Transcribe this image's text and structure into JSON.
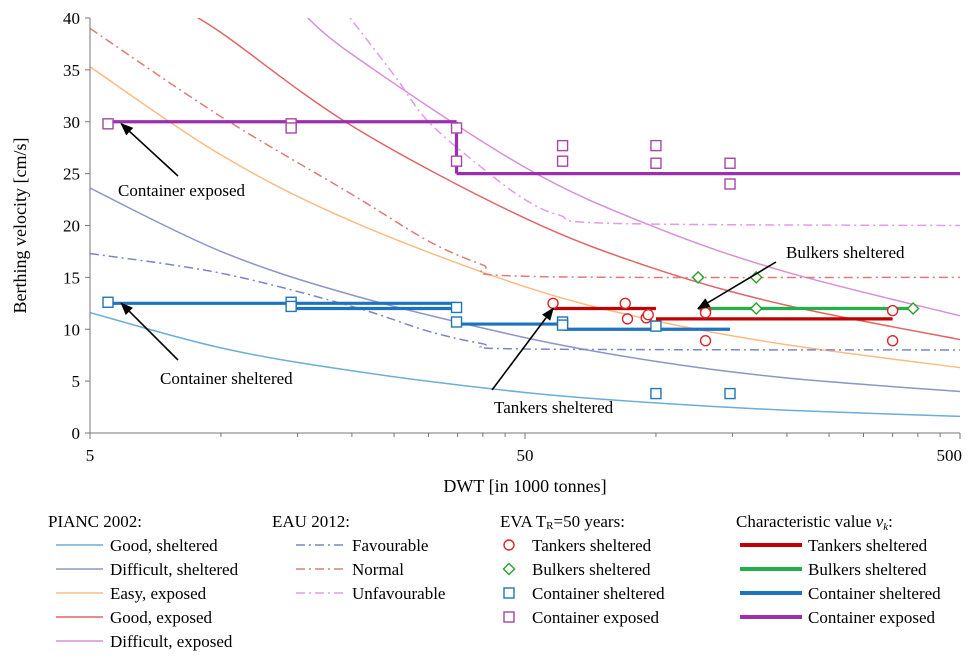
{
  "chart_data": {
    "type": "scatter",
    "xlabel": "DWT  [in 1000  tonnes]",
    "ylabel": "Berthing velocity [cm/s]",
    "x_scale": "log",
    "xlim": [
      5,
      500
    ],
    "ylim": [
      0,
      40
    ],
    "x_ticks": [
      "5",
      "50",
      "500"
    ],
    "y_ticks": [
      "0",
      "5",
      "10",
      "15",
      "20",
      "25",
      "30",
      "35",
      "40"
    ],
    "grid": false,
    "curves": [
      {
        "name": "Good, sheltered",
        "group": "PIANC 2002",
        "color": "#6baed6",
        "points": [
          [
            5,
            11.6
          ],
          [
            10,
            8.2
          ],
          [
            20,
            6.0
          ],
          [
            50,
            3.9
          ],
          [
            100,
            2.9
          ],
          [
            200,
            2.2
          ],
          [
            500,
            1.6
          ]
        ]
      },
      {
        "name": "Difficult, sheltered",
        "group": "PIANC 2002",
        "color": "#8c96c6",
        "points": [
          [
            5,
            23.6
          ],
          [
            10,
            17.5
          ],
          [
            20,
            13.3
          ],
          [
            50,
            9.2
          ],
          [
            100,
            6.9
          ],
          [
            200,
            5.3
          ],
          [
            500,
            4.0
          ]
        ]
      },
      {
        "name": "Easy, exposed",
        "group": "PIANC 2002",
        "color": "#fdbb84",
        "points": [
          [
            5,
            35.3
          ],
          [
            10,
            26.8
          ],
          [
            20,
            20.4
          ],
          [
            50,
            14.1
          ],
          [
            100,
            10.8
          ],
          [
            200,
            8.5
          ],
          [
            500,
            6.3
          ]
        ]
      },
      {
        "name": "Good, exposed",
        "group": "PIANC 2002",
        "color": "#e06666",
        "points": [
          [
            8,
            41
          ],
          [
            10,
            38.6
          ],
          [
            20,
            29.6
          ],
          [
            50,
            20.7
          ],
          [
            100,
            15.8
          ],
          [
            200,
            12.3
          ],
          [
            500,
            9.0
          ]
        ]
      },
      {
        "name": "Difficult, exposed",
        "group": "PIANC 2002",
        "color": "#d88fd8",
        "points": [
          [
            15,
            41
          ],
          [
            20,
            36.5
          ],
          [
            50,
            25.6
          ],
          [
            100,
            19.8
          ],
          [
            200,
            15.5
          ],
          [
            500,
            11.3
          ]
        ]
      },
      {
        "name": "Favourable",
        "group": "EAU 2012",
        "color": "#7b86c2",
        "points": [
          [
            5,
            17.3
          ],
          [
            10,
            15.4
          ],
          [
            20,
            12.2
          ],
          [
            30,
            9.8
          ],
          [
            40,
            8.6
          ],
          [
            50,
            8.1
          ],
          [
            500,
            8.0
          ]
        ]
      },
      {
        "name": "Normal",
        "group": "EAU 2012",
        "color": "#e07a7a",
        "points": [
          [
            5,
            39
          ],
          [
            10,
            30.5
          ],
          [
            20,
            23.0
          ],
          [
            30,
            18.5
          ],
          [
            40,
            16.2
          ],
          [
            50,
            15.1
          ],
          [
            500,
            15.0
          ]
        ]
      },
      {
        "name": "Unfavourable",
        "group": "EAU 2012",
        "color": "#e59ae5",
        "points": [
          [
            19,
            41
          ],
          [
            25,
            34.5
          ],
          [
            30,
            30.0
          ],
          [
            40,
            25.5
          ],
          [
            50,
            22.5
          ],
          [
            60,
            21.0
          ],
          [
            80,
            20.2
          ],
          [
            500,
            20.0
          ]
        ]
      }
    ],
    "scatter": [
      {
        "name": "Tankers sheltered",
        "group": "EVA",
        "marker": "circle",
        "color": "#d62728",
        "points": [
          [
            58,
            12.5
          ],
          [
            85,
            12.5
          ],
          [
            86,
            11.0
          ],
          [
            95,
            11.1
          ],
          [
            96,
            11.4
          ],
          [
            130,
            11.8
          ],
          [
            130,
            11.6
          ],
          [
            130,
            8.9
          ],
          [
            350,
            11.8
          ],
          [
            350,
            8.9
          ]
        ]
      },
      {
        "name": "Bulkers sheltered",
        "group": "EVA",
        "marker": "diamond",
        "color": "#2ca02c",
        "points": [
          [
            125,
            15.0
          ],
          [
            170,
            15.0
          ],
          [
            170,
            12.0
          ],
          [
            390,
            12.0
          ]
        ]
      },
      {
        "name": "Container sheltered",
        "group": "EVA",
        "marker": "square",
        "color": "#1f77b4",
        "points": [
          [
            5.5,
            12.6
          ],
          [
            14.5,
            12.6
          ],
          [
            14.5,
            12.2
          ],
          [
            34.8,
            12.1
          ],
          [
            34.8,
            10.7
          ],
          [
            61,
            10.7
          ],
          [
            61,
            10.4
          ],
          [
            100,
            10.3
          ],
          [
            100,
            3.8
          ],
          [
            148,
            3.8
          ]
        ]
      },
      {
        "name": "Container exposed",
        "group": "EVA",
        "marker": "square",
        "color": "#a646a6",
        "points": [
          [
            5.5,
            29.8
          ],
          [
            14.5,
            29.8
          ],
          [
            14.5,
            29.4
          ],
          [
            34.8,
            29.4
          ],
          [
            34.8,
            26.2
          ],
          [
            61,
            27.7
          ],
          [
            61,
            26.2
          ],
          [
            100,
            27.7
          ],
          [
            100,
            26.0
          ],
          [
            148,
            26.0
          ],
          [
            148,
            24.0
          ]
        ]
      }
    ],
    "characteristic": [
      {
        "name": "Tankers sheltered",
        "color": "#c00000",
        "steps": [
          [
            [
              58,
              12.0
            ],
            [
              100,
              12.0
            ]
          ],
          [
            [
              100,
              11.0
            ],
            [
              350,
              11.0
            ]
          ]
        ]
      },
      {
        "name": "Bulkers sheltered",
        "color": "#22b04b",
        "steps": [
          [
            [
              125,
              12.0
            ],
            [
              390,
              12.0
            ]
          ]
        ]
      },
      {
        "name": "Container sheltered",
        "color": "#1e73be",
        "steps": [
          [
            [
              5.5,
              12.5
            ],
            [
              34.8,
              12.5
            ]
          ],
          [
            [
              34.8,
              12.0
            ],
            [
              34.8,
              12.0
            ]
          ],
          [
            [
              14.5,
              12.0
            ],
            [
              34.8,
              12.0
            ]
          ],
          [
            [
              34.8,
              10.5
            ],
            [
              61,
              10.5
            ]
          ],
          [
            [
              61,
              10.0
            ],
            [
              148,
              10.0
            ]
          ]
        ]
      },
      {
        "name": "Container exposed",
        "color": "#9b2fae",
        "steps": [
          [
            [
              5.5,
              30.0
            ],
            [
              34.8,
              30.0
            ]
          ],
          [
            [
              34.8,
              30.0
            ],
            [
              34.8,
              25.0
            ]
          ],
          [
            [
              34.8,
              25.0
            ],
            [
              500,
              25.0
            ]
          ]
        ]
      }
    ],
    "annotations": [
      {
        "text": "Container exposed",
        "arrow_to": [
          5.9,
          29.8
        ]
      },
      {
        "text": "Container sheltered",
        "arrow_to": [
          5.9,
          12.5
        ]
      },
      {
        "text": "Tankers sheltered",
        "arrow_to": [
          58,
          12.0
        ]
      },
      {
        "text": "Bulkers sheltered",
        "arrow_to": [
          125,
          12.0
        ]
      }
    ]
  },
  "legend": {
    "groups": [
      {
        "title": "PIANC 2002:",
        "items": [
          {
            "label": "Good, sheltered",
            "style": "line",
            "color": "#6baed6"
          },
          {
            "label": "Difficult, sheltered",
            "style": "line",
            "color": "#8c96c6"
          },
          {
            "label": "Easy, exposed",
            "style": "line",
            "color": "#fdbb84"
          },
          {
            "label": "Good, exposed",
            "style": "line",
            "color": "#e06666"
          },
          {
            "label": "Difficult, exposed",
            "style": "line",
            "color": "#d88fd8"
          }
        ]
      },
      {
        "title": "EAU 2012:",
        "items": [
          {
            "label": "Favourable",
            "style": "dashdot",
            "color": "#7b86c2"
          },
          {
            "label": "Normal",
            "style": "dashdot",
            "color": "#e07a7a"
          },
          {
            "label": "Unfavourable",
            "style": "dashdot",
            "color": "#e59ae5"
          }
        ]
      },
      {
        "title_parts": [
          "EVA T",
          "R",
          "=50 years:"
        ],
        "items": [
          {
            "label": "Tankers sheltered",
            "style": "circle",
            "color": "#d62728"
          },
          {
            "label": "Bulkers sheltered",
            "style": "diamond",
            "color": "#2ca02c"
          },
          {
            "label": "Container sheltered",
            "style": "square",
            "color": "#1f77b4"
          },
          {
            "label": "Container exposed",
            "style": "square",
            "color": "#a646a6"
          }
        ]
      },
      {
        "title_parts": [
          "Characteristic value ",
          "ν",
          "k",
          ":"
        ],
        "items": [
          {
            "label": "Tankers sheltered",
            "style": "thick",
            "color": "#c00000"
          },
          {
            "label": "Bulkers sheltered",
            "style": "thick",
            "color": "#22b04b"
          },
          {
            "label": "Container sheltered",
            "style": "thick",
            "color": "#1e73be"
          },
          {
            "label": "Container exposed",
            "style": "thick",
            "color": "#9b2fae"
          }
        ]
      }
    ]
  }
}
